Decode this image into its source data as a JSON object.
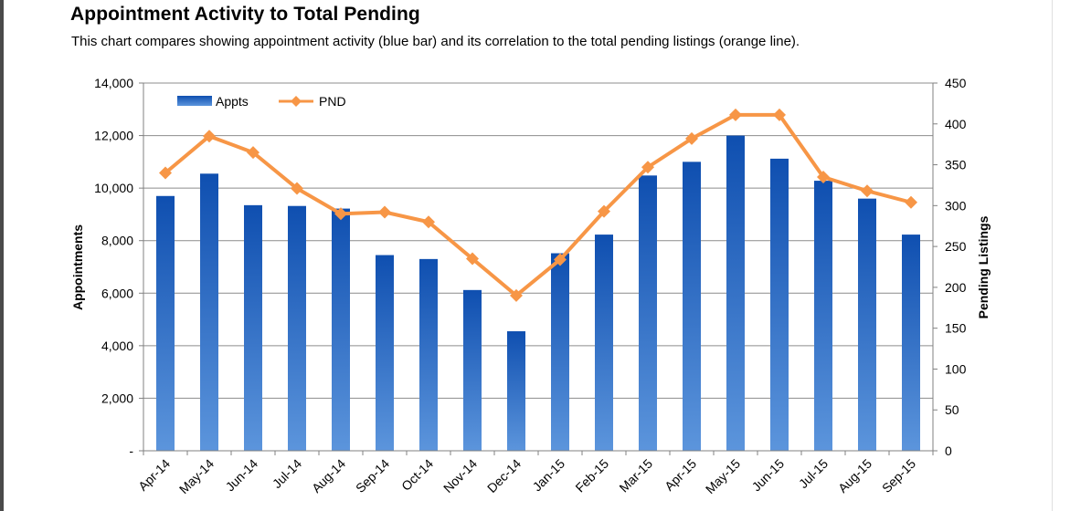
{
  "chart_data": {
    "type": "bar",
    "title": "Appointment Activity to Total Pending",
    "subtitle": "This chart compares showing appointment activity (blue bar) and its correlation to the total pending listings (orange line).",
    "categories": [
      "Apr-14",
      "May-14",
      "Jun-14",
      "Jul-14",
      "Aug-14",
      "Sep-14",
      "Oct-14",
      "Nov-14",
      "Dec-14",
      "Jan-15",
      "Feb-15",
      "Mar-15",
      "Apr-15",
      "May-15",
      "Jun-15",
      "Jul-15",
      "Aug-15",
      "Sep-15"
    ],
    "series": [
      {
        "name": "Appts",
        "type": "bar",
        "axis": "left",
        "color": "#1f5cb4",
        "values": [
          9700,
          10550,
          9350,
          9320,
          9220,
          7450,
          7300,
          6120,
          4550,
          7520,
          8230,
          10480,
          11000,
          12000,
          11120,
          10280,
          9600,
          8230
        ]
      },
      {
        "name": "PND",
        "type": "line",
        "axis": "right",
        "color": "#f79646",
        "values": [
          340,
          385,
          365,
          321,
          290,
          292,
          280,
          235,
          190,
          234,
          293,
          347,
          382,
          411,
          411,
          335,
          318,
          304
        ]
      }
    ],
    "ylabel_left": "Appointments",
    "ylabel_right": "Pending Listings",
    "ylim_left": [
      0,
      14000
    ],
    "ylim_right": [
      0,
      450
    ],
    "yticks_left": [
      "-",
      "2,000",
      "4,000",
      "6,000",
      "8,000",
      "10,000",
      "12,000",
      "14,000"
    ],
    "yticks_right": [
      "0",
      "50",
      "100",
      "150",
      "200",
      "250",
      "300",
      "350",
      "400",
      "450"
    ],
    "grid": "horizontal",
    "legend": "top-left"
  }
}
